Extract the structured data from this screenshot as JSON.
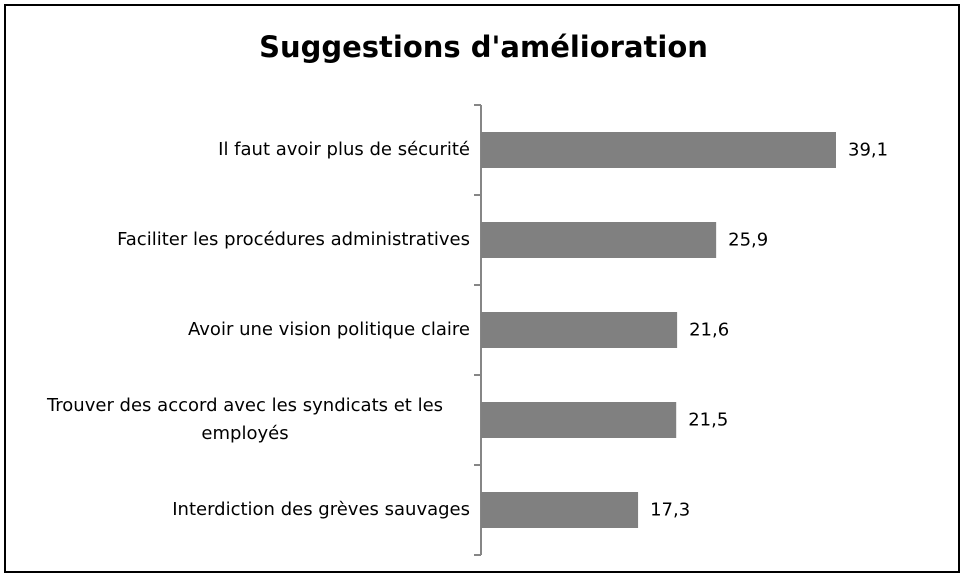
{
  "chart_data": {
    "type": "bar",
    "orientation": "horizontal",
    "title": "Suggestions d'amélioration",
    "categories": [
      "Il faut avoir plus de sécurité",
      "Faciliter les procédures administratives",
      "Avoir une vision politique claire",
      "Trouver des accord avec les syndicats et les employés",
      "Interdiction des grèves sauvages"
    ],
    "values": [
      39.1,
      25.9,
      21.6,
      21.5,
      17.3
    ],
    "value_labels": [
      "39,1",
      "25,9",
      "21,6",
      "21,5",
      "17,3"
    ],
    "color": "#808080"
  }
}
